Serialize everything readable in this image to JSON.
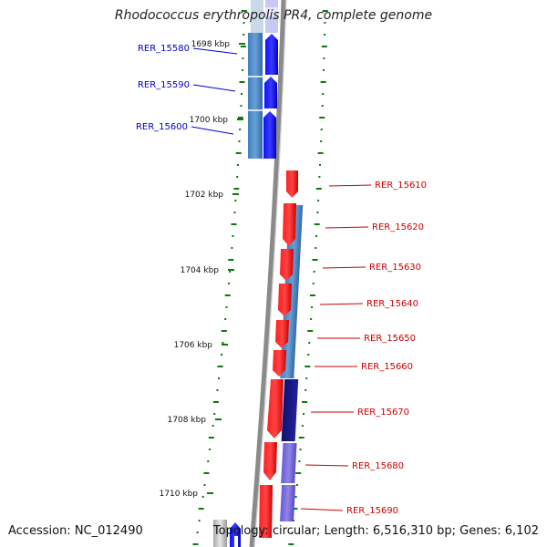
{
  "title": "Rhodococcus erythropolis PR4, complete genome",
  "footer": {
    "accession": "Accession: NC_012490",
    "topology": "Topology: circular; Length: 6,516,310 bp; Genes: 6,102"
  },
  "colors": {
    "label_forward": "#0000cc",
    "label_reverse": "#cc0000",
    "tick": "#0a7a0a",
    "backbone": "#8a8a8a"
  },
  "ticks": [
    {
      "label": "1698 kbp",
      "kbp": 1698
    },
    {
      "label": "1700 kbp",
      "kbp": 1700
    },
    {
      "label": "1702 kbp",
      "kbp": 1702
    },
    {
      "label": "1704 kbp",
      "kbp": 1704
    },
    {
      "label": "1706 kbp",
      "kbp": 1706
    },
    {
      "label": "1708 kbp",
      "kbp": 1708
    },
    {
      "label": "1710 kbp",
      "kbp": 1710
    }
  ],
  "genes": [
    {
      "id": "RER_15580",
      "strand": "+",
      "color": "blue"
    },
    {
      "id": "RER_15590",
      "strand": "+",
      "color": "blue"
    },
    {
      "id": "RER_15600",
      "strand": "+",
      "color": "blue"
    },
    {
      "id": "RER_15610",
      "strand": "-",
      "color": "red"
    },
    {
      "id": "RER_15620",
      "strand": "-",
      "color": "red"
    },
    {
      "id": "RER_15630",
      "strand": "-",
      "color": "red"
    },
    {
      "id": "RER_15640",
      "strand": "-",
      "color": "red"
    },
    {
      "id": "RER_15650",
      "strand": "-",
      "color": "red"
    },
    {
      "id": "RER_15660",
      "strand": "-",
      "color": "red"
    },
    {
      "id": "RER_15670",
      "strand": "-",
      "color": "red"
    },
    {
      "id": "RER_15680",
      "strand": "-",
      "color": "red"
    },
    {
      "id": "RER_15690",
      "strand": "-",
      "color": "red"
    }
  ]
}
